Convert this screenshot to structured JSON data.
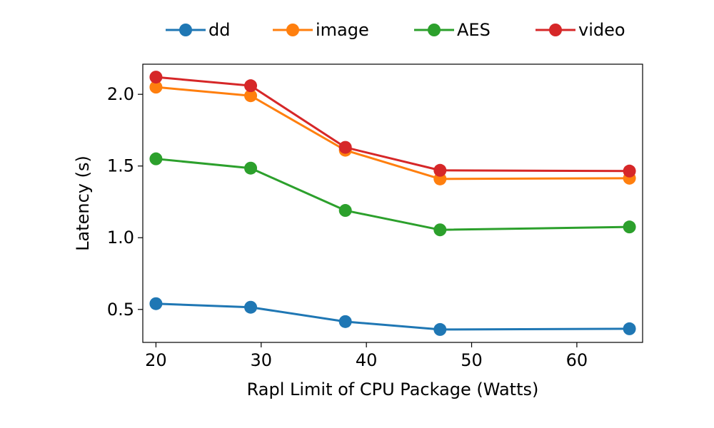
{
  "chart_data": {
    "type": "line",
    "title": "",
    "xlabel": "Rapl Limit of CPU Package (Watts)",
    "ylabel": "Latency (s)",
    "x": [
      20,
      29,
      38,
      47,
      65
    ],
    "xlim": [
      18.75,
      66.25
    ],
    "ylim": [
      0.27,
      2.21
    ],
    "xticks": [
      20,
      30,
      40,
      50,
      60
    ],
    "yticks": [
      0.5,
      1.0,
      1.5,
      2.0
    ],
    "xtick_labels": [
      "20",
      "30",
      "40",
      "50",
      "60"
    ],
    "ytick_labels": [
      "0.5",
      "1.0",
      "1.5",
      "2.0"
    ],
    "grid": false,
    "legend_position": "top-center",
    "series": [
      {
        "name": "dd",
        "color": "#1f77b4",
        "values": [
          0.54,
          0.515,
          0.415,
          0.36,
          0.365
        ]
      },
      {
        "name": "image",
        "color": "#ff7f0e",
        "values": [
          2.05,
          1.99,
          1.61,
          1.41,
          1.415
        ]
      },
      {
        "name": "AES",
        "color": "#2ca02c",
        "values": [
          1.55,
          1.485,
          1.19,
          1.055,
          1.075
        ]
      },
      {
        "name": "video",
        "color": "#d62728",
        "values": [
          2.12,
          2.06,
          1.63,
          1.47,
          1.465
        ]
      }
    ]
  }
}
